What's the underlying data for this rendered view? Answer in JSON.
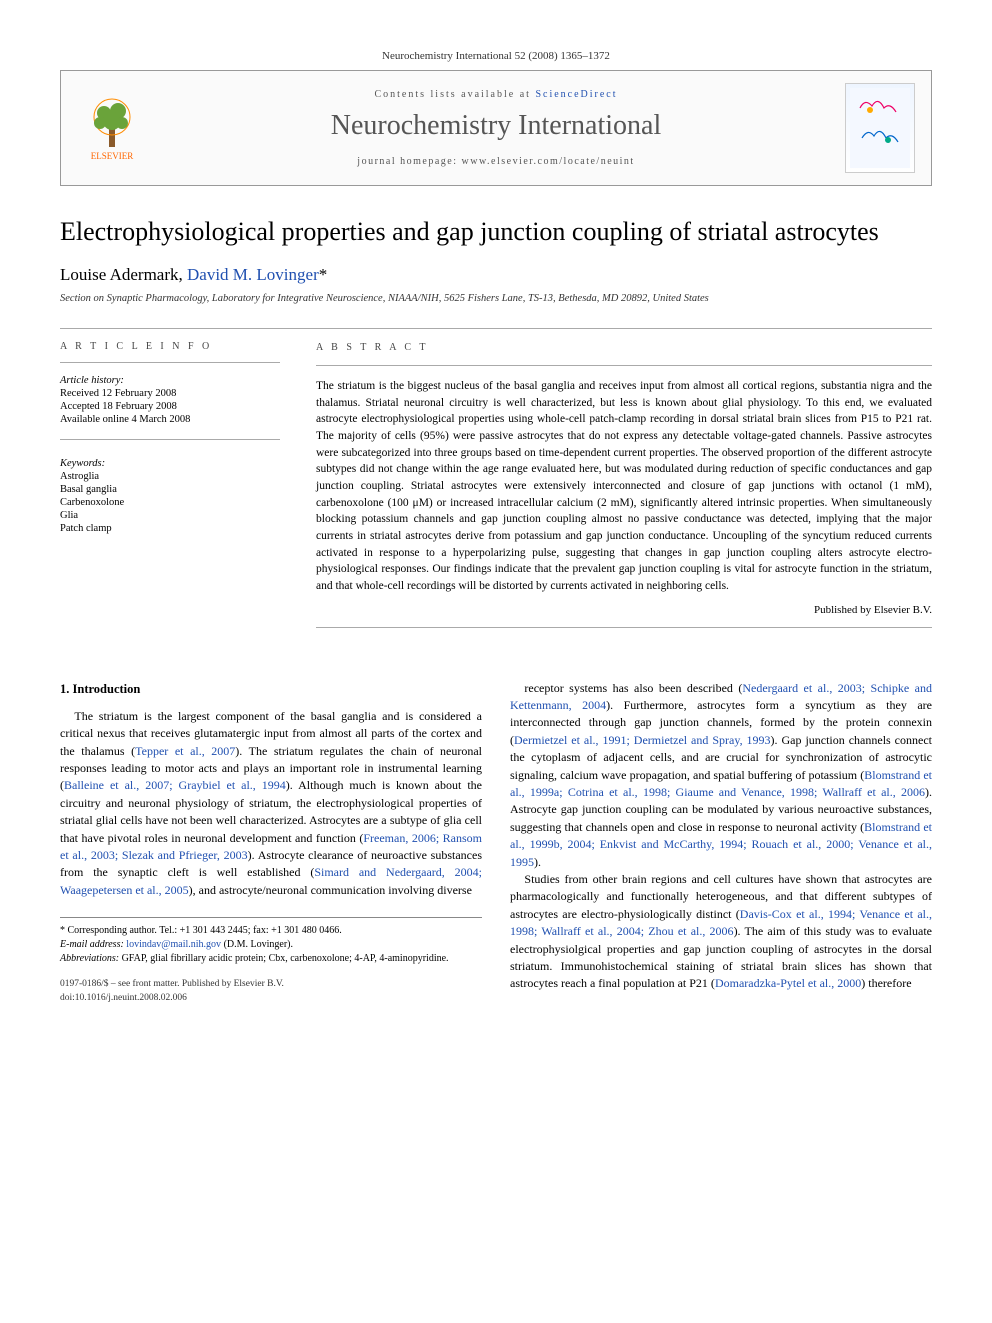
{
  "header": {
    "citation": "Neurochemistry International 52 (2008) 1365–1372",
    "contents_prefix": "Contents lists available at ",
    "contents_link": "ScienceDirect",
    "journal_name": "Neurochemistry International",
    "homepage_prefix": "journal homepage: ",
    "homepage_url": "www.elsevier.com/locate/neuint",
    "publisher_label": "ELSEVIER"
  },
  "article": {
    "title": "Electrophysiological properties and gap junction coupling of striatal astrocytes",
    "author1": "Louise Adermark",
    "author2": "David M. Lovinger",
    "corr_marker": "*",
    "affiliation": "Section on Synaptic Pharmacology, Laboratory for Integrative Neuroscience, NIAAA/NIH, 5625 Fishers Lane, TS-13, Bethesda, MD 20892, United States"
  },
  "article_info": {
    "heading": "A R T I C L E   I N F O",
    "history_label": "Article history:",
    "received": "Received 12 February 2008",
    "accepted": "Accepted 18 February 2008",
    "online": "Available online 4 March 2008",
    "keywords_label": "Keywords:",
    "keywords": [
      "Astroglia",
      "Basal ganglia",
      "Carbenoxolone",
      "Glia",
      "Patch clamp"
    ]
  },
  "abstract": {
    "heading": "A B S T R A C T",
    "text": "The striatum is the biggest nucleus of the basal ganglia and receives input from almost all cortical regions, substantia nigra and the thalamus. Striatal neuronal circuitry is well characterized, but less is known about glial physiology. To this end, we evaluated astrocyte electrophysiological properties using whole-cell patch-clamp recording in dorsal striatal brain slices from P15 to P21 rat. The majority of cells (95%) were passive astrocytes that do not express any detectable voltage-gated channels. Passive astrocytes were subcategorized into three groups based on time-dependent current properties. The observed proportion of the different astrocyte subtypes did not change within the age range evaluated here, but was modulated during reduction of specific conductances and gap junction coupling. Striatal astrocytes were extensively interconnected and closure of gap junctions with octanol (1 mM), carbenoxolone (100 μM) or increased intracellular calcium (2 mM), significantly altered intrinsic properties. When simultaneously blocking potassium channels and gap junction coupling almost no passive conductance was detected, implying that the major currents in striatal astrocytes derive from potassium and gap junction conductance. Uncoupling of the syncytium reduced currents activated in response to a hyperpolarizing pulse, suggesting that changes in gap junction coupling alters astrocyte electro-physiological responses. Our findings indicate that the prevalent gap junction coupling is vital for astrocyte function in the striatum, and that whole-cell recordings will be distorted by currents activated in neighboring cells.",
    "published": "Published by Elsevier B.V."
  },
  "body": {
    "section_number": "1.",
    "section_title": "Introduction",
    "col1": "The striatum is the largest component of the basal ganglia and is considered a critical nexus that receives glutamatergic input from almost all parts of the cortex and the thalamus (<span class=\"cite\">Tepper et al., 2007</span>). The striatum regulates the chain of neuronal responses leading to motor acts and plays an important role in instrumental learning (<span class=\"cite\">Balleine et al., 2007; Graybiel et al., 1994</span>). Although much is known about the circuitry and neuronal physiology of striatum, the electrophysiological properties of striatal glial cells have not been well characterized. Astrocytes are a subtype of glia cell that have pivotal roles in neuronal development and function (<span class=\"cite\">Freeman, 2006; Ransom et al., 2003; Slezak and Pfrieger, 2003</span>). Astrocyte clearance of neuroactive substances from the synaptic cleft is well established (<span class=\"cite\">Simard and Nedergaard, 2004; Waagepetersen et al., 2005</span>), and astrocyte/neuronal communication involving diverse",
    "col2_p1": "receptor systems has also been described (<span class=\"cite\">Nedergaard et al., 2003; Schipke and Kettenmann, 2004</span>). Furthermore, astrocytes form a syncytium as they are interconnected through gap junction channels, formed by the protein connexin (<span class=\"cite\">Dermietzel et al., 1991; Dermietzel and Spray, 1993</span>). Gap junction channels connect the cytoplasm of adjacent cells, and are crucial for synchronization of astrocytic signaling, calcium wave propagation, and spatial buffering of potassium (<span class=\"cite\">Blomstrand et al., 1999a; Cotrina et al., 1998; Giaume and Venance, 1998; Wallraff et al., 2006</span>). Astrocyte gap junction coupling can be modulated by various neuroactive substances, suggesting that channels open and close in response to neuronal activity (<span class=\"cite\">Blomstrand et al., 1999b, 2004; Enkvist and McCarthy, 1994; Rouach et al., 2000; Venance et al., 1995</span>).",
    "col2_p2": "Studies from other brain regions and cell cultures have shown that astrocytes are pharmacologically and functionally heterogeneous, and that different subtypes of astrocytes are electro-physiologically distinct (<span class=\"cite\">Davis-Cox et al., 1994; Venance et al., 1998; Wallraff et al., 2004; Zhou et al., 2006</span>). The aim of this study was to evaluate electrophysiolgical properties and gap junction coupling of astrocytes in the dorsal striatum. Immunohistochemical staining of striatal brain slices has shown that astrocytes reach a final population at P21 (<span class=\"cite\">Domaradzka-Pytel et al., 2000</span>) therefore"
  },
  "footnotes": {
    "corr_label": "* Corresponding author. Tel.: +1 301 443 2445; fax: +1 301 480 0466.",
    "email_label": "E-mail address:",
    "email": "lovindav@mail.nih.gov",
    "email_suffix": "(D.M. Lovinger).",
    "abbrev_label": "Abbreviations:",
    "abbrev_text": "GFAP, glial fibrillary acidic protein; Cbx, carbenoxolone; 4-AP, 4-aminopyridine.",
    "copyright": "0197-0186/$ – see front matter. Published by Elsevier B.V.",
    "doi": "doi:10.1016/j.neuint.2008.02.006"
  },
  "colors": {
    "link": "#2050b0",
    "text": "#000000",
    "muted": "#555555",
    "border": "#aaaaaa",
    "elsevier_orange": "#ff6600"
  }
}
